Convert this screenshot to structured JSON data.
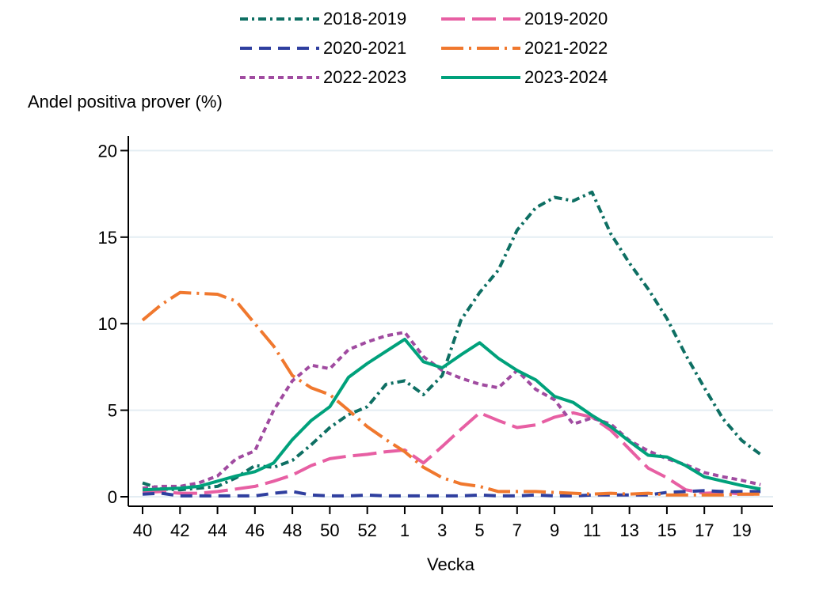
{
  "title": "Andel positiva prover (%)",
  "xlabel": "Vecka",
  "chart_data": {
    "type": "line",
    "title": "Andel positiva prover (%)",
    "xlabel": "Vecka",
    "ylabel": "Andel positiva prover (%)",
    "ylim": [
      0,
      20
    ],
    "yticks": [
      0,
      5,
      10,
      15,
      20
    ],
    "grid": true,
    "legend_position": "top-center",
    "categories": [
      "40",
      "41",
      "42",
      "43",
      "44",
      "45",
      "46",
      "47",
      "48",
      "49",
      "50",
      "51",
      "52",
      "53",
      "1",
      "2",
      "3",
      "4",
      "5",
      "6",
      "7",
      "8",
      "9",
      "10",
      "11",
      "12",
      "13",
      "14",
      "15",
      "16",
      "17",
      "18",
      "19",
      "20"
    ],
    "xtick_labels": [
      "40",
      "42",
      "44",
      "46",
      "48",
      "50",
      "52",
      "1",
      "3",
      "5",
      "7",
      "9",
      "11",
      "13",
      "15",
      "17",
      "19"
    ],
    "series": [
      {
        "name": "2018-2019",
        "color": "#0e6f63",
        "dash": "dashdot",
        "values": [
          0.8,
          0.45,
          0.4,
          0.5,
          0.6,
          1.1,
          1.8,
          1.7,
          2.1,
          3.0,
          4.0,
          4.75,
          5.2,
          6.5,
          6.7,
          5.9,
          7.0,
          10.2,
          11.8,
          13.1,
          15.4,
          16.7,
          17.3,
          17.1,
          17.6,
          15.2,
          13.5,
          12.0,
          10.3,
          8.2,
          6.3,
          4.5,
          3.25,
          2.45
        ]
      },
      {
        "name": "2019-2020",
        "color": "#e75fa3",
        "dash": "longdash",
        "values": [
          0.25,
          0.3,
          0.2,
          0.2,
          0.3,
          0.45,
          0.6,
          0.9,
          1.25,
          1.8,
          2.2,
          2.35,
          2.45,
          2.6,
          2.7,
          1.95,
          2.9,
          3.9,
          4.85,
          4.4,
          4.0,
          4.15,
          4.6,
          4.85,
          4.6,
          3.85,
          2.75,
          1.65,
          1.1,
          0.4,
          0.2,
          0.25,
          0.15,
          0.15
        ]
      },
      {
        "name": "2020-2021",
        "color": "#2f3f9f",
        "dash": "dash",
        "values": [
          0.15,
          0.2,
          0.05,
          0.05,
          0.05,
          0.05,
          0.05,
          0.2,
          0.3,
          0.1,
          0.05,
          0.05,
          0.1,
          0.05,
          0.05,
          0.05,
          0.05,
          0.05,
          0.1,
          0.05,
          0.05,
          0.1,
          0.05,
          0.05,
          0.1,
          0.1,
          0.1,
          0.1,
          0.25,
          0.3,
          0.35,
          0.3,
          0.3,
          0.3
        ]
      },
      {
        "name": "2021-2022",
        "color": "#f0782e",
        "dash": "longdashdot",
        "values": [
          10.2,
          11.1,
          11.8,
          11.75,
          11.7,
          11.3,
          10.0,
          8.7,
          7.0,
          6.3,
          5.9,
          5.0,
          4.05,
          3.3,
          2.6,
          1.7,
          1.1,
          0.75,
          0.6,
          0.3,
          0.3,
          0.3,
          0.25,
          0.2,
          0.15,
          0.2,
          0.15,
          0.2,
          0.1,
          0.1,
          0.1,
          0.1,
          0.15,
          0.15
        ]
      },
      {
        "name": "2022-2023",
        "color": "#a04ba0",
        "dash": "dot",
        "values": [
          0.5,
          0.6,
          0.6,
          0.8,
          1.2,
          2.2,
          2.65,
          5.0,
          6.7,
          7.6,
          7.4,
          8.5,
          8.95,
          9.3,
          9.5,
          8.1,
          7.3,
          6.85,
          6.5,
          6.3,
          7.3,
          6.2,
          5.6,
          4.2,
          4.55,
          4.2,
          3.25,
          2.65,
          2.2,
          1.85,
          1.4,
          1.15,
          0.95,
          0.7
        ]
      },
      {
        "name": "2023-2024",
        "color": "#00a17b",
        "dash": "solid",
        "values": [
          0.4,
          0.45,
          0.5,
          0.6,
          0.9,
          1.2,
          1.45,
          1.95,
          3.3,
          4.4,
          5.2,
          6.9,
          7.7,
          8.4,
          9.1,
          7.8,
          7.45,
          8.2,
          8.9,
          8.0,
          7.3,
          6.75,
          5.8,
          5.45,
          4.7,
          4.05,
          3.2,
          2.4,
          2.3,
          1.8,
          1.15,
          0.9,
          0.65,
          0.45
        ]
      }
    ]
  }
}
